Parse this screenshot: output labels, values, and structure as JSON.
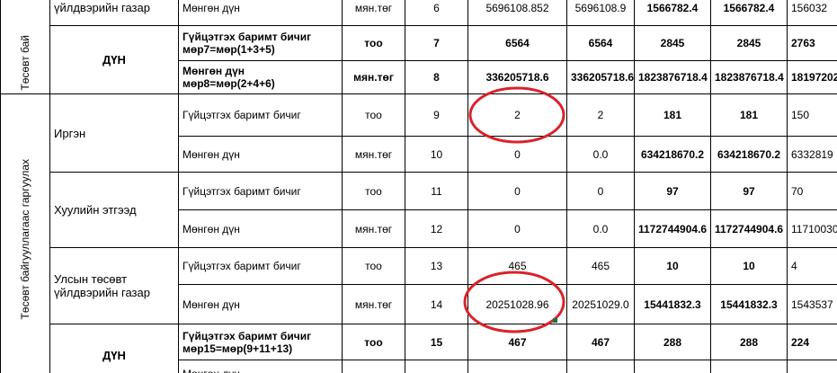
{
  "table": {
    "groups": [
      {
        "label": "Төсөвт бай",
        "rows": [
          {
            "entity": "үйлдвэрийн газар",
            "indicator": "Мөнгөн дүн",
            "unit": "мян.төг",
            "no": "6",
            "values": [
              "5696108.852",
              "5696108.9",
              "1566782.4",
              "1566782.4",
              "156032"
            ]
          },
          {
            "entity": "ДҮН",
            "indicator": "Гүйцэтгэх баримт бичиг",
            "formula": "мөр7=мөр(1+3+5)",
            "unit": "тоо",
            "no": "7",
            "values": [
              "6564",
              "6564",
              "2845",
              "2845",
              "2763"
            ]
          },
          {
            "indicator": "Мөнгөн дүн",
            "formula": "мөр8=мөр(2+4+6)",
            "unit": "мян.төг",
            "no": "8",
            "values": [
              "336205718.6",
              "336205718.6",
              "1823876718.4",
              "1823876718.4",
              "18197202"
            ]
          }
        ]
      },
      {
        "label": "Төсөвт байгууллагаас гаргуулах",
        "rows": [
          {
            "entity": "Иргэн",
            "indicator": "Гүйцэтгэх баримт бичиг",
            "unit": "тоо",
            "no": "9",
            "values": [
              "2",
              "2",
              "181",
              "181",
              "150"
            ]
          },
          {
            "indicator": "Мөнгөн дүн",
            "unit": "мян.төг",
            "no": "10",
            "values": [
              "0",
              "0.0",
              "634218670.2",
              "634218670.2",
              "6332819"
            ]
          },
          {
            "entity": "Хуулийн этгээд",
            "indicator": "Гүйцэтгэх баримт бичиг",
            "unit": "тоо",
            "no": "11",
            "values": [
              "0",
              "0",
              "97",
              "97",
              "70"
            ]
          },
          {
            "indicator": "Мөнгөн дүн",
            "unit": "мян.төг",
            "no": "12",
            "values": [
              "0",
              "0.0",
              "1172744904.6",
              "1172744904.6",
              "11710030"
            ]
          },
          {
            "entity": "Улсын төсөвт үйлдвэрийн газар",
            "indicator": "Гүйцэтгэх баримт бичиг",
            "unit": "тоо",
            "no": "13",
            "values": [
              "465",
              "465",
              "10",
              "10",
              "4"
            ]
          },
          {
            "indicator": "Мөнгөн дүн",
            "unit": "мян.төг",
            "no": "14",
            "values": [
              "20251028.96",
              "20251029.0",
              "15441832.3",
              "15441832.3",
              "1543537"
            ]
          },
          {
            "entity": "ДҮН",
            "indicator": "Гүйцэтгэх баримт бичиг",
            "formula": "мөр15=мөр(9+11+13)",
            "unit": "тоо",
            "no": "15",
            "values": [
              "467",
              "467",
              "288",
              "288",
              "224"
            ]
          },
          {
            "indicator": "Мөнгөн дүн"
          }
        ]
      }
    ]
  }
}
